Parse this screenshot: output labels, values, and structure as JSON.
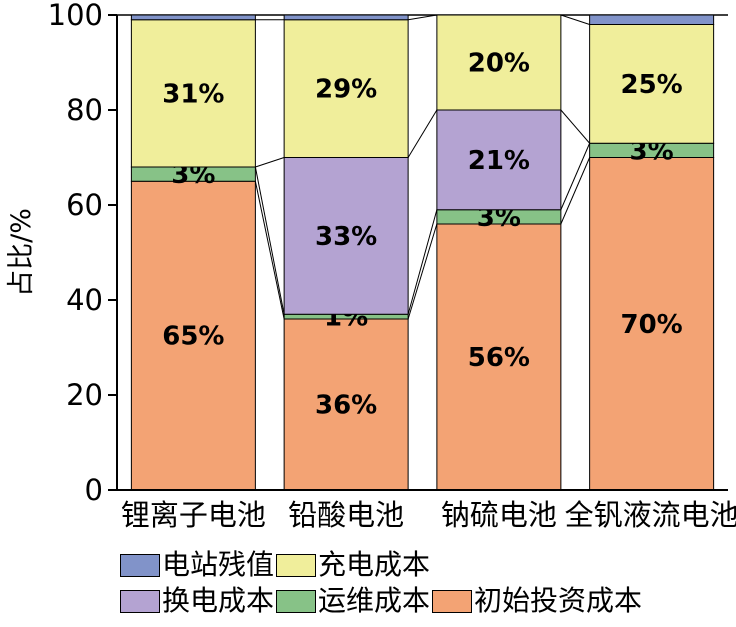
{
  "chart_data": {
    "type": "bar",
    "subtype": "stacked-100-percent",
    "title": "",
    "xlabel": "",
    "ylabel": "占比/%",
    "ylim": [
      0,
      100
    ],
    "yticks": [
      0,
      20,
      40,
      60,
      80,
      100
    ],
    "grid": false,
    "series_connector_lines": true,
    "legend_position": "bottom-left",
    "categories": [
      "锂离子电池",
      "铅酸电池",
      "钠硫电池",
      "全钒液流电池"
    ],
    "series": [
      {
        "name": "初始投资成本",
        "color": "#F3A374",
        "values": [
          65,
          36,
          56,
          70
        ]
      },
      {
        "name": "运维成本",
        "color": "#87C287",
        "values": [
          3,
          1,
          3,
          3
        ]
      },
      {
        "name": "换电成本",
        "color": "#B4A3D2",
        "values": [
          0,
          33,
          21,
          0
        ]
      },
      {
        "name": "充电成本",
        "color": "#F0EE9B",
        "values": [
          31,
          29,
          20,
          25
        ]
      },
      {
        "name": "电站残值",
        "color": "#8193C9",
        "values": [
          1,
          1,
          0,
          2
        ]
      }
    ],
    "segment_labels": [
      [
        "65%",
        "36%",
        "56%",
        "70%"
      ],
      [
        "3%",
        "1%",
        "3%",
        "3%"
      ],
      [
        "",
        "33%",
        "21%",
        ""
      ],
      [
        "31%",
        "29%",
        "20%",
        "25%"
      ],
      [
        "",
        "",
        "",
        ""
      ]
    ],
    "legend_rows": [
      [
        "电站残值",
        "充电成本"
      ],
      [
        "换电成本",
        "运维成本",
        "初始投资成本"
      ]
    ]
  }
}
